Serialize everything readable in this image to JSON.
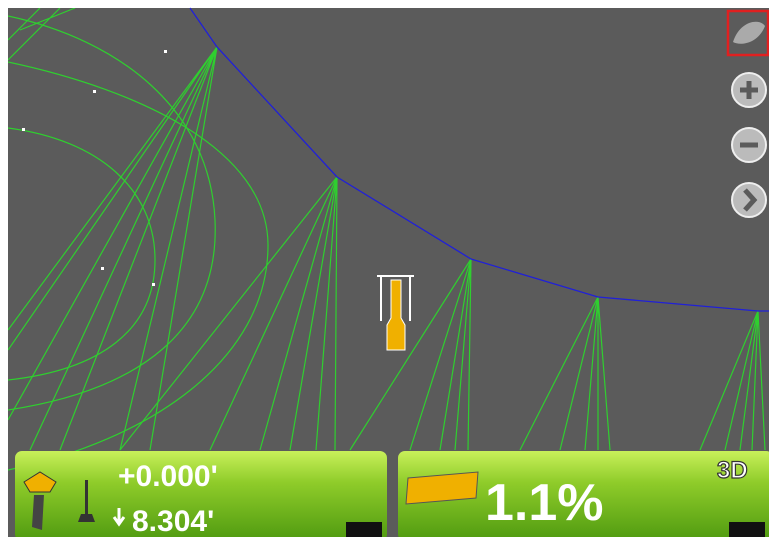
{
  "left_panel": {
    "elevation_offset": "+0.000'",
    "cut_depth": "8.304'"
  },
  "right_panel": {
    "slope": "1.1%",
    "mode": "3D"
  }
}
